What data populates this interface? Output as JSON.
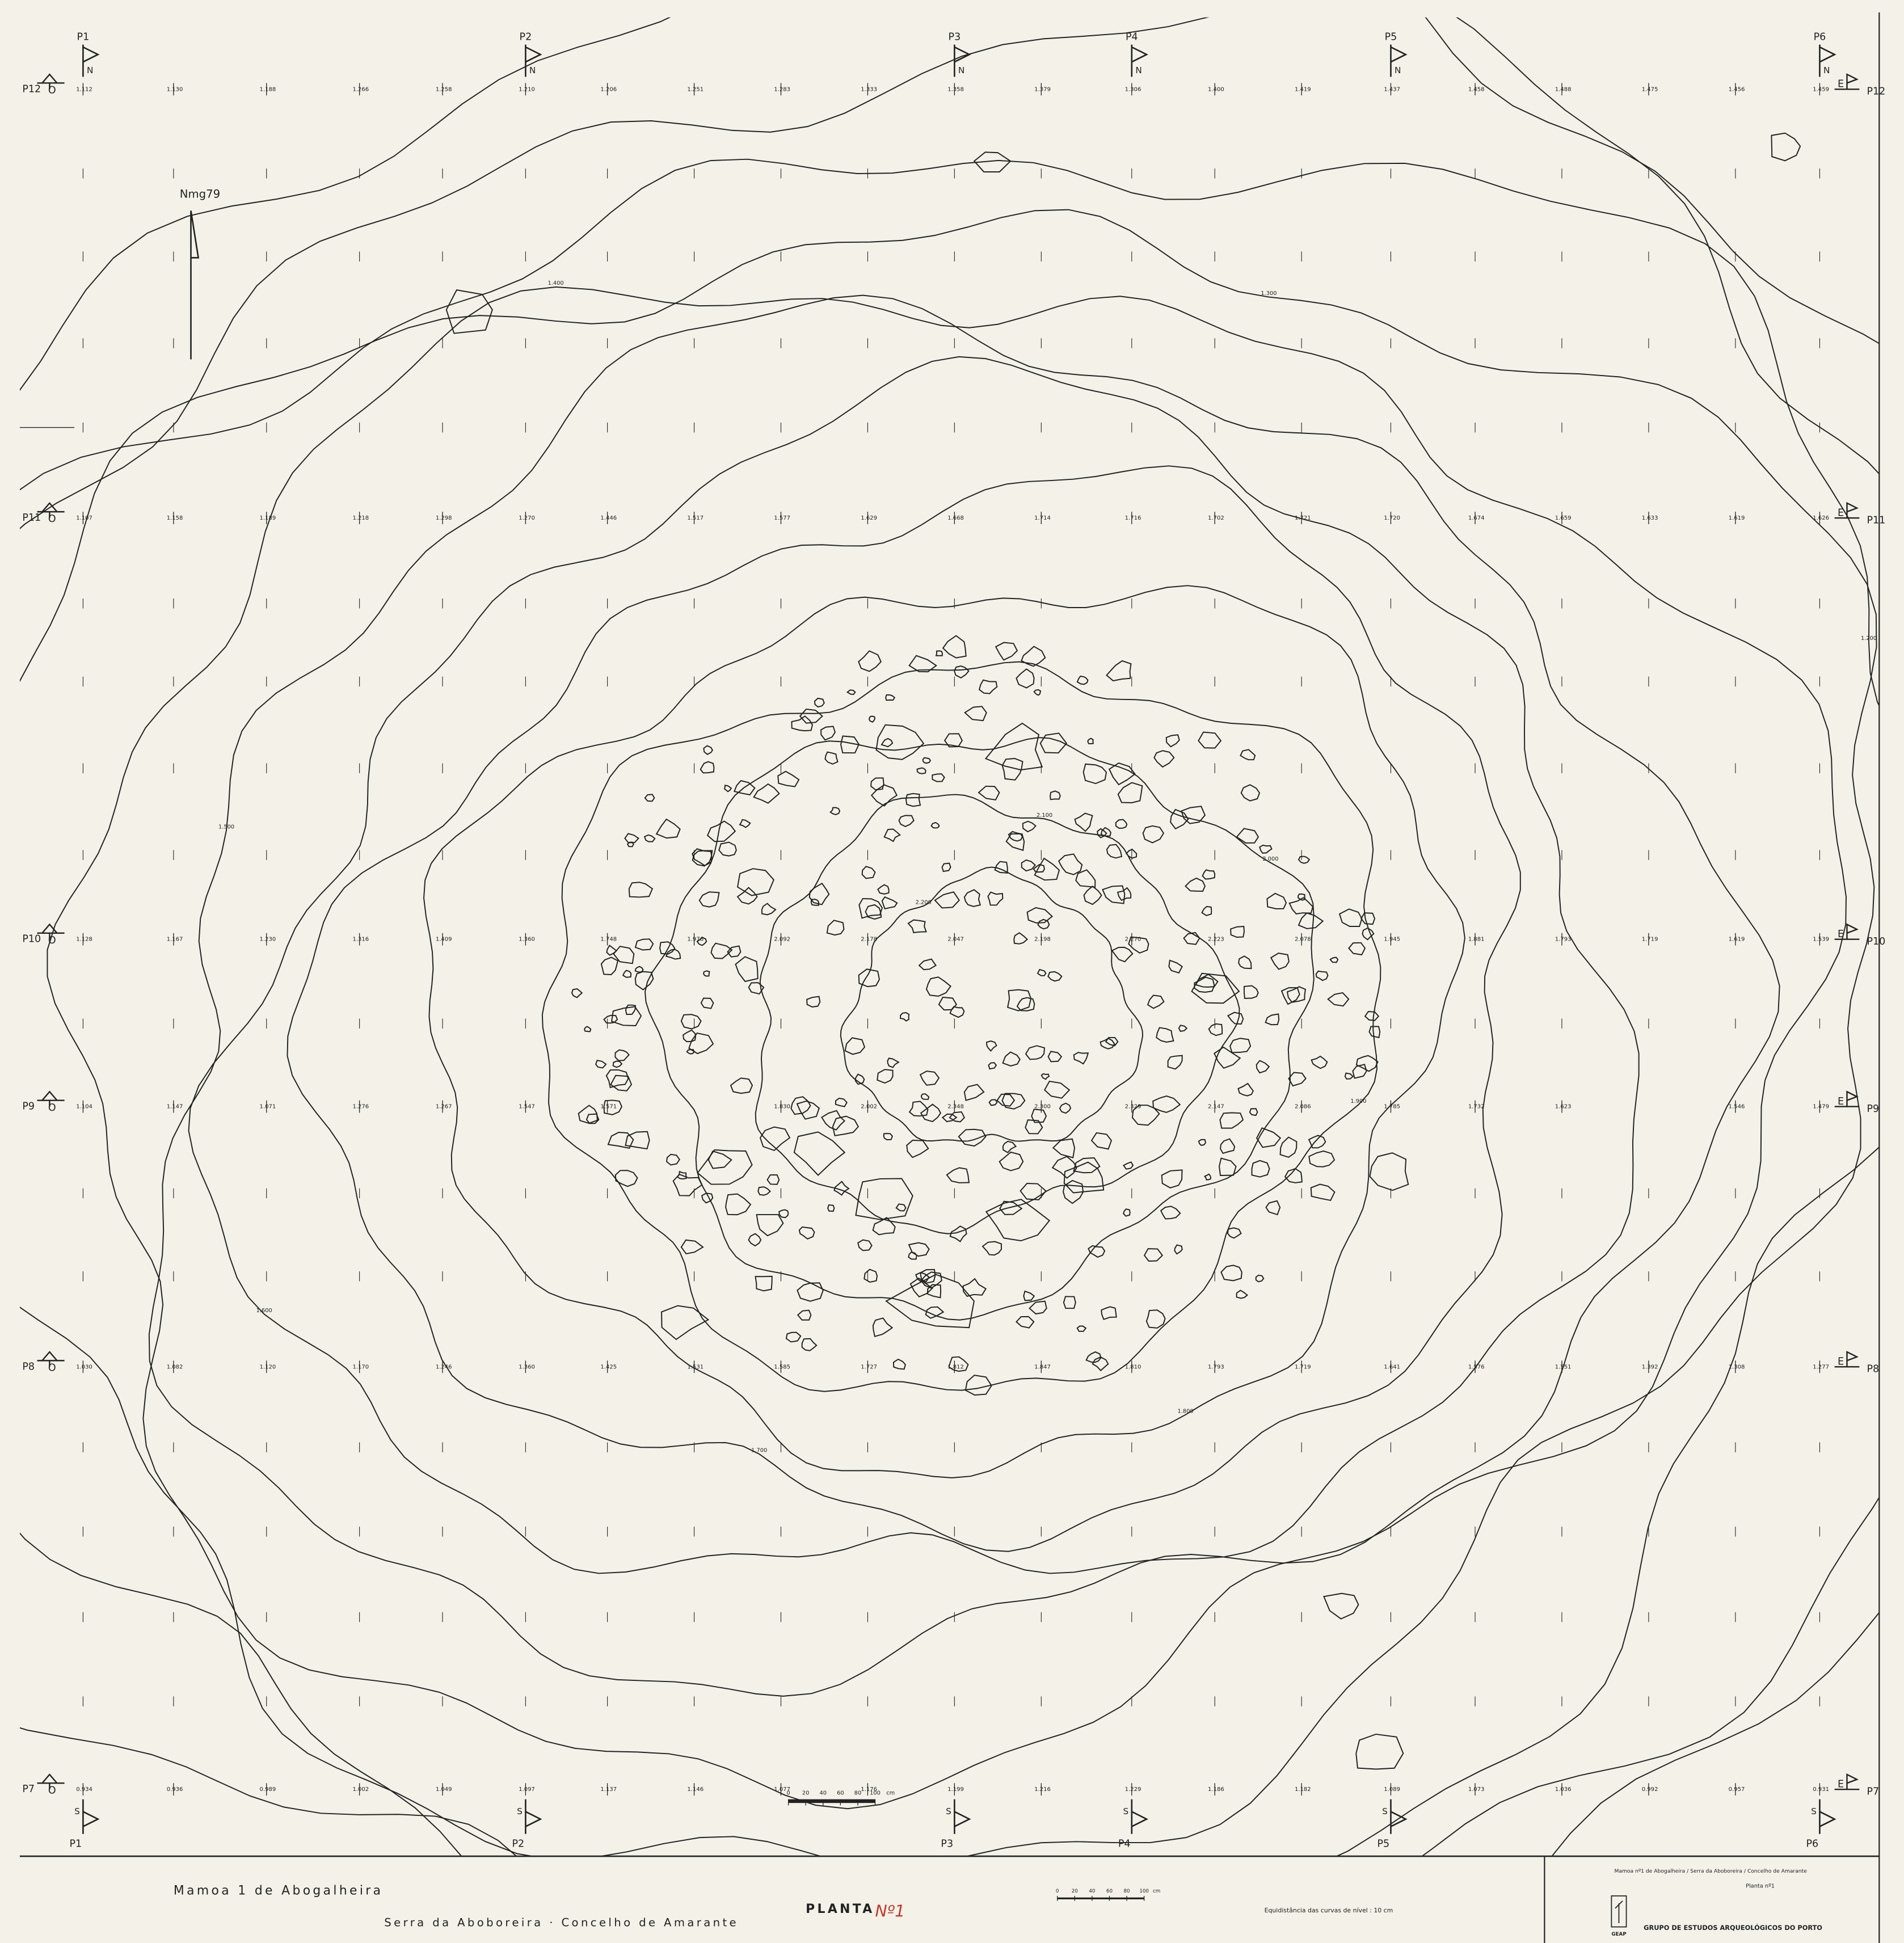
{
  "north_label": "Nmg79",
  "markers": {
    "north": "N",
    "south": "S",
    "east": "E",
    "west": "O"
  },
  "profiles_top": [
    "P1",
    "P2",
    "P3",
    "P4",
    "P5",
    "P6"
  ],
  "profiles_left": [
    "P12",
    "P11",
    "P10",
    "P9",
    "P8",
    "P7"
  ],
  "elevation_rows": [
    [
      "1.112",
      "1.130",
      "1.188",
      "1.266",
      "1.258",
      "1.210",
      "1.206",
      "1.251",
      "1.283",
      "1.333",
      "1.358",
      "1.379",
      "1.306",
      "1.400",
      "1.419",
      "1.437",
      "1.458",
      "1.488",
      "1.475",
      "1.456",
      "1.459"
    ],
    [
      "1.107",
      "1.158",
      "1.189",
      "1.218",
      "1.298",
      "1.270",
      "1.446",
      "1.517",
      "1.577",
      "1.629",
      "1.668",
      "1.714",
      "1.716",
      "1.702",
      "1.721",
      "1.720",
      "1.674",
      "1.659",
      "1.633",
      "1.619",
      "1.626"
    ],
    [
      "1.128",
      "1.167",
      "1.230",
      "1.316",
      "1.409",
      "1.360",
      "1.748",
      "1.976",
      "2.092",
      "2.178",
      "2.047",
      "2.198",
      "2.270",
      "2.223",
      "2.078",
      "1.945",
      "1.881",
      "1.793",
      "1.719",
      "1.619",
      "1.539"
    ],
    [
      "1.104",
      "1.147",
      "1.071",
      "1.276",
      "1.267",
      "1.547",
      "1.571",
      null,
      "1.830",
      "2.002",
      "2.348",
      "2.300",
      "2.329",
      "2.147",
      "2.086",
      "1.785",
      "1.732",
      "1.623",
      null,
      "1.546",
      "1.479"
    ],
    [
      "1.030",
      "1.082",
      "1.120",
      "1.170",
      "1.246",
      "1.360",
      "1.425",
      "1.531",
      "1.585",
      "1.727",
      "1.812",
      "1.847",
      "1.810",
      "1.793",
      "1.719",
      "1.641",
      "1.576",
      "1.551",
      "1.392",
      "1.308",
      "1.277"
    ],
    [
      "0.934",
      "0.936",
      "0.989",
      "1.002",
      "1.049",
      "1.097",
      "1.137",
      "1.146",
      "1.077",
      "1.176",
      "1.199",
      "1.216",
      "1.229",
      "1.186",
      "1.182",
      "1.089",
      "1.073",
      "1.036",
      "0.992",
      "0.957",
      "0.931"
    ]
  ],
  "contour_labels": [
    "2.200",
    "2.100",
    "2.000",
    "1.900",
    "1.800",
    "1.700",
    "1.600",
    "1.500",
    "1.400",
    "1.300",
    "1.200",
    "1.100",
    "1.000"
  ],
  "scale_bar": {
    "ticks": [
      "0",
      "20",
      "40",
      "60",
      "80",
      "100"
    ],
    "unit": "cm"
  },
  "title_block": {
    "site": "Mamoa 1 de Abogalheira",
    "location": "Serra da Aboboreira · Concelho de Amarante",
    "plan": "PLANTA",
    "plan_number": "Nº1",
    "contour_note": "Equidistância das curvas de nível : 10 cm",
    "header": "Mamoa nº1 de Abogalheira / Serra da Aboboreira / Concelho de Amarante",
    "sheet": "Planta nº1",
    "institution": "GRUPO DE ESTUDOS ARQUEOLÓGICOS DO PORTO",
    "logo": "GEAP"
  }
}
